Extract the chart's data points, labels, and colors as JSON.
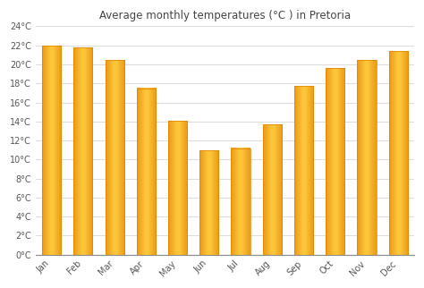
{
  "title": "Average monthly temperatures (°C ) in Pretoria",
  "months": [
    "Jan",
    "Feb",
    "Mar",
    "Apr",
    "May",
    "Jun",
    "Jul",
    "Aug",
    "Sep",
    "Oct",
    "Nov",
    "Dec"
  ],
  "values": [
    22.0,
    21.8,
    20.5,
    17.5,
    14.1,
    11.0,
    11.2,
    13.7,
    17.7,
    19.6,
    20.5,
    21.4
  ],
  "bar_color_main": "#FFC020",
  "bar_color_edge": "#E08000",
  "bar_color_highlight": "#FFE080",
  "background_color": "#ffffff",
  "plot_bg_color": "#ffffff",
  "grid_color": "#dddddd",
  "axis_color": "#888888",
  "text_color": "#555555",
  "title_color": "#444444",
  "ylim": [
    0,
    24
  ],
  "yticks": [
    0,
    2,
    4,
    6,
    8,
    10,
    12,
    14,
    16,
    18,
    20,
    22,
    24
  ],
  "title_fontsize": 8.5,
  "tick_fontsize": 7,
  "bar_width": 0.6
}
